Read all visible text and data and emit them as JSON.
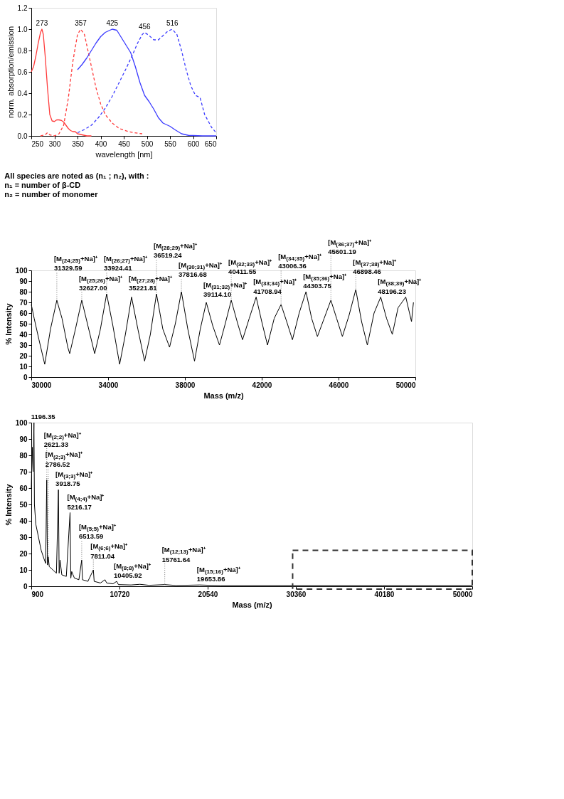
{
  "chart_data": [
    {
      "type": "line",
      "xlabel": "wavelength [nm]",
      "ylabel": "norm. absorption/emission",
      "xlim": [
        250,
        650
      ],
      "xticks": [
        250,
        300,
        350,
        400,
        450,
        500,
        550,
        600,
        650
      ],
      "ylim": [
        0,
        1.2
      ],
      "yticks": [
        {
          "value": 0,
          "label": "0.0"
        },
        0.2,
        0.4,
        0.6,
        0.8,
        {
          "value": 1,
          "label": "1.0"
        },
        1.2
      ],
      "grid": false,
      "legend": false,
      "series": [
        {
          "color": "#ff3b3b",
          "line_style": "solid",
          "x": [
            250,
            255,
            260,
            265,
            270,
            273,
            276,
            280,
            285,
            290,
            295,
            300,
            305,
            310,
            315,
            320,
            325,
            330,
            335,
            340,
            345,
            350,
            360,
            370,
            380
          ],
          "values": [
            0.6,
            0.65,
            0.75,
            0.87,
            0.97,
            1.0,
            0.95,
            0.75,
            0.45,
            0.2,
            0.14,
            0.135,
            0.15,
            0.15,
            0.145,
            0.13,
            0.1,
            0.07,
            0.05,
            0.04,
            0.04,
            0.02,
            0.01,
            0.0,
            0.0
          ]
        },
        {
          "color": "#ff3b3b",
          "line_style": "dashed",
          "x": [
            270,
            280,
            285,
            290,
            300,
            310,
            320,
            330,
            340,
            350,
            357,
            365,
            375,
            390,
            400,
            410,
            425,
            440,
            460,
            480,
            490
          ],
          "values": [
            0.0,
            0.01,
            0.03,
            0.01,
            0.0,
            0.02,
            0.1,
            0.35,
            0.7,
            0.95,
            1.0,
            0.95,
            0.75,
            0.45,
            0.3,
            0.2,
            0.12,
            0.07,
            0.04,
            0.025,
            0.02
          ]
        },
        {
          "color": "#3b3bff",
          "line_style": "solid",
          "x": [
            350,
            360,
            370,
            380,
            390,
            400,
            410,
            420,
            425,
            435,
            445,
            455,
            465,
            475,
            485,
            495,
            505,
            515,
            525,
            535,
            550,
            560,
            575,
            590,
            620,
            650
          ],
          "values": [
            0.62,
            0.67,
            0.73,
            0.8,
            0.87,
            0.93,
            0.97,
            0.99,
            1.0,
            0.99,
            0.92,
            0.85,
            0.78,
            0.65,
            0.5,
            0.38,
            0.32,
            0.25,
            0.17,
            0.12,
            0.09,
            0.06,
            0.02,
            0.005,
            0.0,
            0.0
          ]
        },
        {
          "color": "#3b3bff",
          "line_style": "dashed",
          "x": [
            350,
            365,
            380,
            395,
            410,
            425,
            440,
            455,
            470,
            480,
            490,
            495,
            505,
            515,
            525,
            535,
            545,
            555,
            565,
            575,
            585,
            595,
            605,
            615,
            625,
            640,
            650
          ],
          "values": [
            0.03,
            0.06,
            0.1,
            0.17,
            0.26,
            0.37,
            0.5,
            0.63,
            0.77,
            0.87,
            0.95,
            0.97,
            0.94,
            0.9,
            0.9,
            0.94,
            0.98,
            1.0,
            0.95,
            0.8,
            0.62,
            0.47,
            0.38,
            0.36,
            0.2,
            0.08,
            0.03
          ]
        }
      ],
      "annotations": [
        {
          "text": "273",
          "x": 273,
          "y": 1.0
        },
        {
          "text": "357",
          "x": 357,
          "y": 1.0
        },
        {
          "text": "425",
          "x": 425,
          "y": 1.0
        },
        {
          "text": "456",
          "x": 495,
          "y": 0.97
        },
        {
          "text": "516",
          "x": 555,
          "y": 1.0
        }
      ]
    },
    {
      "type": "line",
      "xlabel": "Mass (m/z)",
      "ylabel": "% Intensity",
      "xlim": [
        30000,
        50000
      ],
      "xticks": [
        30000,
        34000,
        38000,
        42000,
        46000,
        50000
      ],
      "ylim": [
        0,
        100
      ],
      "yticks": [
        0,
        10,
        20,
        30,
        40,
        50,
        60,
        70,
        80,
        90,
        100
      ],
      "grid": false,
      "legend": false,
      "series": [
        {
          "color": "#000000",
          "x": [
            30000,
            30150,
            30400,
            30700,
            31000,
            31330,
            31600,
            31900,
            32000,
            32300,
            32627,
            32950,
            33300,
            33600,
            33924,
            34250,
            34600,
            34900,
            35222,
            35550,
            35900,
            36200,
            36519,
            36850,
            37200,
            37500,
            37817,
            38150,
            38500,
            38800,
            39114,
            39450,
            39800,
            40100,
            40412,
            40750,
            41000,
            41350,
            41709,
            42000,
            42300,
            42650,
            43006,
            43300,
            43600,
            43950,
            44304,
            44600,
            44900,
            45250,
            45601,
            45900,
            46200,
            46550,
            46898,
            47200,
            47500,
            47850,
            48196,
            48500,
            48800,
            49100,
            49500,
            49800,
            49900
          ],
          "values": [
            68,
            55,
            35,
            12,
            45,
            72,
            55,
            28,
            22,
            45,
            72,
            48,
            22,
            45,
            78,
            48,
            12,
            40,
            75,
            45,
            15,
            40,
            78,
            45,
            28,
            50,
            80,
            45,
            15,
            45,
            70,
            48,
            30,
            50,
            72,
            50,
            35,
            55,
            75,
            52,
            30,
            55,
            68,
            52,
            35,
            60,
            80,
            55,
            38,
            55,
            72,
            55,
            38,
            58,
            82,
            52,
            30,
            60,
            75,
            55,
            40,
            65,
            75,
            52,
            70
          ]
        }
      ],
      "annotations": [
        "All species are noted as (n₁ ; n₂), with :",
        "n₁ = number of β-CD",
        "n₂ = number of monomer",
        {
          "text": "[M$_{(24;25)}$+Na]⁺\n31329.59",
          "x": 31329.59,
          "y": 72
        },
        {
          "text": "[M$_{(25;26)}$+Na]⁺\n32627.00",
          "x": 32627.0,
          "y": 72
        },
        {
          "text": "[M$_{(26;27)}$+Na]⁺\n33924.41",
          "x": 33924.41,
          "y": 78
        },
        {
          "text": "[M$_{(27;28)}$+Na]⁺\n35221.81",
          "x": 35221.81,
          "y": 75
        },
        {
          "text": "[M$_{(28;29)}$+Na]⁺\n36519.24",
          "x": 36519.24,
          "y": 78
        },
        {
          "text": "[M$_{(30;31)}$+Na]⁺\n37816.68",
          "x": 37816.68,
          "y": 80
        },
        {
          "text": "[M$_{(31;32)}$+Na]⁺\n39114.10",
          "x": 39114.1,
          "y": 70
        },
        {
          "text": "[M$_{(32;33)}$+Na]⁺\n40411.55",
          "x": 40411.55,
          "y": 72
        },
        {
          "text": "[M$_{(33;34)}$+Na]⁺\n41708.94",
          "x": 41708.94,
          "y": 75
        },
        {
          "text": "[M$_{(34;35)}$+Na]⁺\n43006.36",
          "x": 43006.36,
          "y": 68
        },
        {
          "text": "[M$_{(35;36)}$+Na]⁺\n44303.75",
          "x": 44303.75,
          "y": 80
        },
        {
          "text": "[M$_{(36;37)}$+Na]⁺\n45601.19",
          "x": 45601.19,
          "y": 72
        },
        {
          "text": "[M$_{(37;38)}$+Na]⁺\n46898.46",
          "x": 46898.46,
          "y": 82
        },
        {
          "text": "[M$_{(38;39)}$+Na]⁺\n48196.23",
          "x": 48196.23,
          "y": 75
        }
      ]
    },
    {
      "type": "line",
      "xlabel": "Mass (m/z)",
      "ylabel": "% Intensity",
      "xlim": [
        900,
        50000
      ],
      "xticks": [
        900,
        10720,
        20540,
        30360,
        40180,
        50000
      ],
      "ylim": [
        0,
        100
      ],
      "yticks": [
        0,
        10,
        20,
        30,
        40,
        50,
        60,
        70,
        80,
        90,
        100
      ],
      "grid": false,
      "legend": false,
      "series": [
        {
          "color": "#000000",
          "x": [
            900,
            1000,
            1100,
            1196.35,
            1250,
            1400,
            1700,
            2000,
            2300,
            2500,
            2621.33,
            2700,
            2786.52,
            2900,
            3300,
            3700,
            3918.75,
            4000,
            4100,
            4300,
            4800,
            5216.17,
            5300,
            5400,
            5700,
            6200,
            6513.59,
            6600,
            7200,
            7811.04,
            7900,
            8600,
            9100,
            9300,
            10000,
            10405.92,
            10600,
            12000,
            13000,
            14000,
            15761.64,
            17000,
            19653.86,
            22000,
            30000,
            40000,
            50000
          ],
          "values": [
            60,
            85,
            70,
            100,
            50,
            38,
            30,
            22,
            17,
            14,
            65,
            13,
            18,
            12,
            10,
            8,
            59,
            8,
            16,
            7,
            6,
            45,
            5,
            9,
            5,
            4,
            16,
            4,
            3,
            10,
            3,
            2,
            4,
            2,
            1.5,
            3,
            1,
            0.8,
            1.2,
            0.6,
            1,
            0.5,
            0.8,
            0.4,
            0.5,
            0.5,
            0.5
          ]
        }
      ],
      "annotations": [
        {
          "text": "1196.35",
          "x": 1196.35,
          "y": 100
        },
        {
          "text": "[M$_{(2;2)}$+Na]⁺\n2621.33",
          "x": 2621.33,
          "y": 65
        },
        {
          "text": "[M$_{(3;3)}$+Na]⁺\n3918.75",
          "x": 3918.75,
          "y": 59
        },
        {
          "text": "[M$_{(4;4)}$+Na]⁺\n5216.17",
          "x": 5216.17,
          "y": 45
        },
        {
          "text": "[M$_{(5;5)}$+Na]⁺\n6513.59",
          "x": 6513.59,
          "y": 16
        },
        {
          "text": "[M$_{(2;3)}$+Na]⁺\n2786.52",
          "x": 2786.52,
          "y": 18
        },
        {
          "text": "[M$_{(6;6)}$+Na]⁺\n7811.04",
          "x": 7811.04,
          "y": 10
        },
        {
          "text": "[M$_{(8;8)}$+Na]⁺\n10405.92",
          "x": 10405.92,
          "y": 3
        },
        {
          "text": "[M$_{(12;13)}$+Na]⁺\n15761.64",
          "x": 15761.64,
          "y": 1
        },
        {
          "text": "[M$_{(15;16)}$+Na]⁺\n19653.86",
          "x": 19653.86,
          "y": 0.8
        }
      ]
    }
  ]
}
